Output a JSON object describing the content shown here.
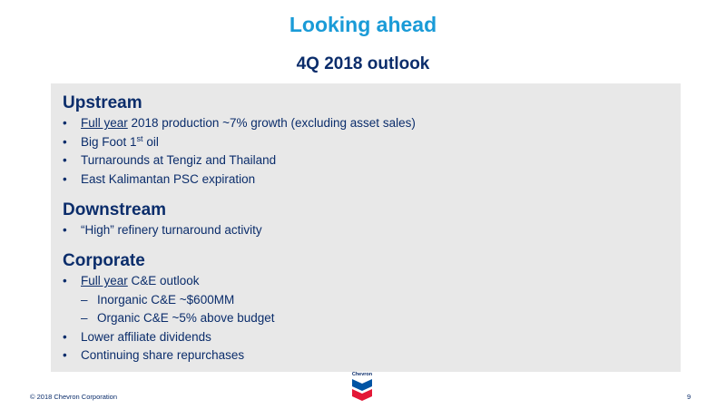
{
  "slide": {
    "title": "Looking ahead",
    "subtitle": "4Q 2018 outlook",
    "page_number": "9",
    "copyright": "© 2018 Chevron Corporation",
    "logo_text": "Chevron"
  },
  "sections": {
    "upstream": {
      "title": "Upstream",
      "items": {
        "production_underline": "Full year",
        "production_rest": " 2018 production ~7% growth (excluding asset sales)",
        "bigfoot_text": "Big Foot 1",
        "bigfoot_sup": "st",
        "bigfoot_tail": " oil",
        "turnarounds": "Turnarounds at Tengiz and Thailand",
        "kalimantan": "East Kalimantan PSC expiration"
      }
    },
    "downstream": {
      "title": "Downstream",
      "items": {
        "refinery": "“High” refinery turnaround activity"
      }
    },
    "corporate": {
      "title": "Corporate",
      "items": {
        "ce_underline": "Full year",
        "ce_rest": " C&E outlook",
        "inorganic": "Inorganic C&E ~$600MM",
        "organic": "Organic C&E ~5% above budget",
        "dividends": "Lower affiliate dividends",
        "repurchases": "Continuing share repurchases"
      }
    }
  },
  "colors": {
    "title": "#1a9bd7",
    "text": "#0b2d6b",
    "panel": "#e8e8e8",
    "logo_blue": "#0054a4",
    "logo_red": "#e31837"
  }
}
